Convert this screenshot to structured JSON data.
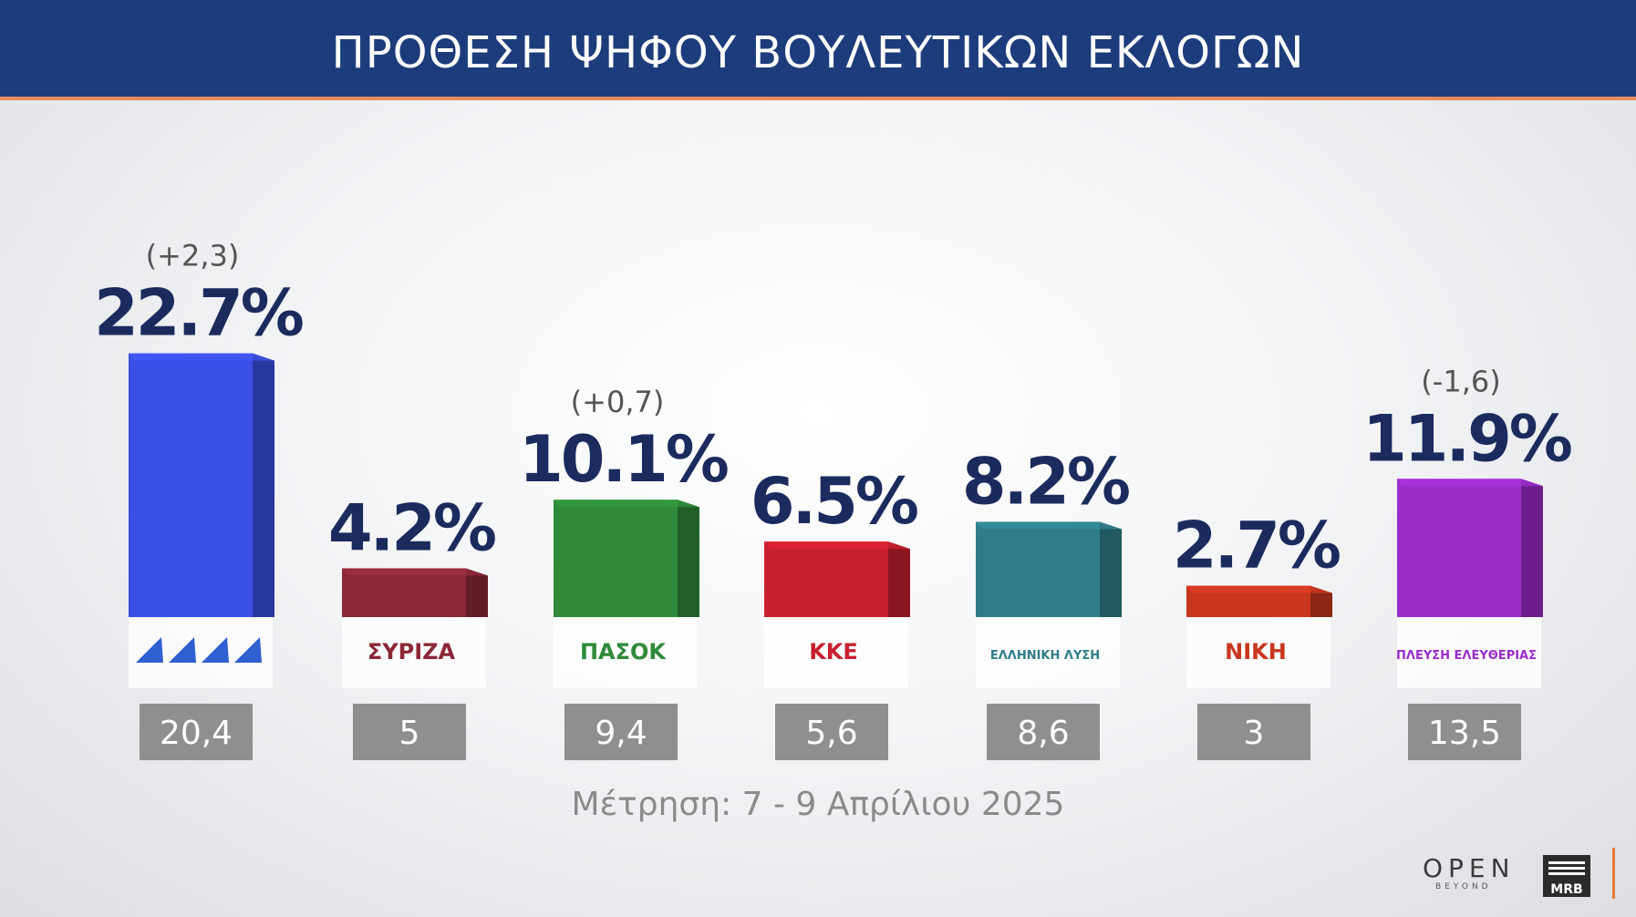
{
  "header": {
    "title": "ΠΡΟΘΕΣΗ ΨΗΦΟΥ ΒΟΥΛΕΥΤΙΚΩΝ ΕΚΛΟΓΩΝ"
  },
  "footer": {
    "note": "Μέτρηση: 7 - 9 Απρίλιου 2025"
  },
  "branding": {
    "channel": "OPEN",
    "channel_sub": "BEYOND",
    "pollster": "MRB"
  },
  "chart_data": {
    "type": "bar",
    "title": "ΠΡΟΘΕΣΗ ΨΗΦΟΥ ΒΟΥΛΕΥΤΙΚΩΝ ΕΚΛΟΓΩΝ",
    "categories": [
      "ΝΔ",
      "ΣΥΡΙΖΑ",
      "ΠΑΣΟΚ",
      "ΚΚΕ",
      "ΕΛΛΗΝΙΚΗ ΛΥΣΗ",
      "ΝΙΚΗ",
      "ΠΛΕΥΣΗ ΕΛΕΥΘΕΡΙΑΣ"
    ],
    "logo_texts": [
      "",
      "ΣΥΡΙΖΑ",
      "ΠΑΣΟΚ",
      "ΚΚΕ",
      "ΕΛΛΗΝΙΚΗ ΛΥΣΗ",
      "ΝΙΚΗ",
      "ΠΛΕΥΣΗ ΕΛΕΥΘΕΡΙΑΣ"
    ],
    "values": [
      22.7,
      4.2,
      10.1,
      6.5,
      8.2,
      2.7,
      11.9
    ],
    "value_labels": [
      "22.7%",
      "4.2%",
      "10.1%",
      "6.5%",
      "8.2%",
      "2.7%",
      "11.9%"
    ],
    "changes": [
      "(+2,3)",
      "",
      "(+0,7)",
      "",
      "",
      "",
      "(-1,6)"
    ],
    "previous": [
      "20,4",
      "5",
      "9,4",
      "5,6",
      "8,6",
      "3",
      "13,5"
    ],
    "colors": [
      "#3a4fe6",
      "#8a2838",
      "#2f8a3a",
      "#c8202e",
      "#2f7d8a",
      "#c8361e",
      "#9a2cc8"
    ],
    "ylim": [
      0,
      24
    ]
  }
}
